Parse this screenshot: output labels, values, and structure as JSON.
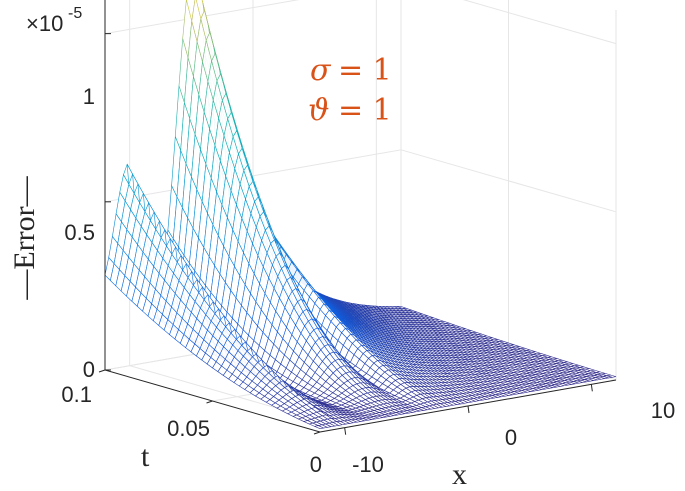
{
  "chart_data": {
    "type": "surface",
    "title": "",
    "zlabel": "—Error—",
    "xlabel": "x",
    "ylabel": "t",
    "zlim": [
      0,
      1.1e-05
    ],
    "xlim": [
      -12,
      12
    ],
    "ylim": [
      0,
      0.1
    ],
    "z_exponent_label": "×10",
    "z_exponent_power": "-5",
    "z_ticks": [
      "0",
      "0.5",
      "1"
    ],
    "z_tick_values": [
      0,
      0.5,
      1
    ],
    "x_ticks": [
      "-10",
      "0",
      "10"
    ],
    "x_tick_values": [
      -10,
      0,
      10
    ],
    "t_ticks": [
      "0",
      "0.05",
      "0.1"
    ],
    "t_tick_values": [
      0,
      0.05,
      0.1
    ],
    "grid": true,
    "colormap": "parula",
    "annotations": [
      {
        "symbol": "σ",
        "text": "= 1"
      },
      {
        "symbol": "ϑ",
        "text": "= 1"
      }
    ],
    "peak_error_estimate": 1.15e-05,
    "side_peak_error_estimate": 4.5e-06,
    "series": [
      {
        "t": 0.1,
        "peaks_x": [
          -10,
          -4.5,
          -1.5
        ],
        "peaks_err": [
          0.45,
          1.15,
          0.55
        ]
      }
    ]
  }
}
